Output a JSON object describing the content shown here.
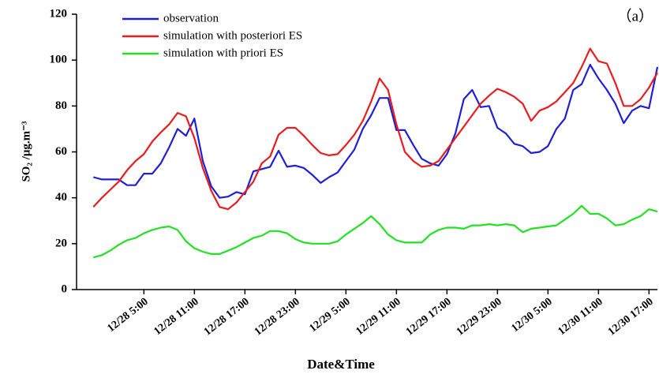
{
  "chart_data": {
    "type": "line",
    "y_label": "SO₂ /μg.m⁻³",
    "x_label": "Date&Time",
    "annotation": "（a）",
    "x": [
      -1,
      0,
      1,
      2,
      3,
      4,
      5,
      6,
      7,
      8,
      9,
      10,
      11,
      12,
      13,
      14,
      15,
      16,
      17,
      18,
      19,
      20,
      21,
      22,
      23,
      24,
      25,
      26,
      27,
      28,
      29,
      30,
      31,
      32,
      33,
      34,
      35,
      36,
      37,
      38,
      39,
      40,
      41,
      42,
      43,
      44,
      45,
      46,
      47,
      48,
      49,
      50,
      51,
      52,
      53,
      54,
      55,
      56,
      57,
      58,
      59,
      60,
      61,
      62,
      63,
      64,
      65,
      66
    ],
    "series": [
      {
        "name": "observation",
        "color": "#1f1fd6",
        "values": [
          49,
          48,
          48,
          48,
          45.5,
          45.5,
          50.5,
          50.5,
          55,
          62,
          70,
          67,
          74.5,
          56,
          45,
          40,
          40.5,
          42.5,
          41.5,
          51.5,
          52.5,
          53.5,
          60.5,
          53.5,
          54,
          53,
          50,
          46.5,
          49,
          51,
          56,
          61,
          70,
          76,
          83.5,
          83.5,
          69.5,
          69.5,
          63,
          57,
          55,
          54,
          59,
          68,
          83,
          87,
          79.5,
          80,
          70.5,
          68,
          63.5,
          62.5,
          59.5,
          60,
          62.5,
          70,
          74.5,
          87,
          89.5,
          98,
          92,
          87,
          81,
          72.5,
          78,
          80,
          79,
          97
        ]
      },
      {
        "name": "simulation with posteriori ES",
        "color": "#e81c1c",
        "values": [
          36,
          40,
          43.5,
          47,
          52,
          56,
          59,
          64.5,
          68.5,
          72,
          77,
          75.5,
          66,
          53,
          43,
          36,
          35,
          38,
          42.5,
          47,
          55,
          58,
          67.5,
          70.5,
          70.5,
          67,
          63,
          59.5,
          58.5,
          59,
          63,
          67.5,
          73.5,
          82,
          92,
          87,
          72,
          60,
          56,
          53.5,
          54,
          56,
          61,
          66,
          71,
          76,
          81,
          84.5,
          87.5,
          86,
          84,
          81,
          73.5,
          78,
          79.5,
          82,
          86,
          90,
          97,
          105,
          99.5,
          98.5,
          90,
          80,
          80,
          83,
          88,
          94.5
        ]
      },
      {
        "name": "simulation with priori ES",
        "color": "#22e022",
        "values": [
          14,
          15,
          17,
          19.5,
          21.5,
          22.5,
          24.5,
          26,
          27,
          27.5,
          26,
          21,
          18,
          16.5,
          15.5,
          15.5,
          17,
          18.5,
          20.5,
          22.5,
          23.5,
          25.5,
          25.5,
          24.5,
          22,
          20.5,
          20,
          20,
          20,
          21,
          24,
          26.5,
          29,
          32,
          28.5,
          24,
          21.5,
          20.5,
          20.5,
          20.5,
          24,
          26,
          27,
          27,
          26.5,
          28,
          28,
          28.5,
          28,
          28.5,
          28,
          25,
          26.5,
          27,
          27.5,
          28,
          30.5,
          33,
          36.5,
          33,
          33,
          31,
          28,
          28.5,
          30.5,
          32,
          35,
          34
        ]
      }
    ],
    "xlim": [
      -3,
      66
    ],
    "xticks": [
      {
        "value": 5,
        "label": "12/28 5:00"
      },
      {
        "value": 11,
        "label": "12/28 11:00"
      },
      {
        "value": 17,
        "label": "12/28 17:00"
      },
      {
        "value": 23,
        "label": "12/28 23:00"
      },
      {
        "value": 29,
        "label": "12/29 5:00"
      },
      {
        "value": 35,
        "label": "12/29 11:00"
      },
      {
        "value": 41,
        "label": "12/29 17:00"
      },
      {
        "value": 47,
        "label": "12/29 23:00"
      },
      {
        "value": 53,
        "label": "12/30 5:00"
      },
      {
        "value": 59,
        "label": "12/30 11:00"
      },
      {
        "value": 65,
        "label": "12/30 17:00"
      }
    ],
    "ylim": [
      0,
      120
    ],
    "yticks": [
      0,
      20,
      40,
      60,
      80,
      100,
      120
    ],
    "grid": false,
    "legend": "upper left"
  }
}
